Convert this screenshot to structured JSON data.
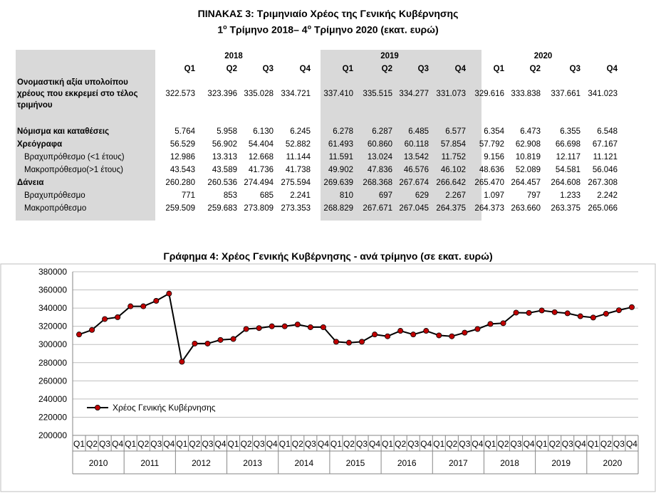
{
  "table": {
    "title_line1": "ΠΙΝΑΚΑΣ 3: Τριμηνιαίο Χρέος της Γενικής Κυβέρνησης",
    "title_line2_a": "1",
    "title_line2_sup1": "ο",
    "title_line2_b": " Τρίμηνο 2018– 4",
    "title_line2_sup2": "ο",
    "title_line2_c": " Τρίμηνο 2020 (εκατ. ευρώ)",
    "years": [
      "2018",
      "2019",
      "2020"
    ],
    "quarters": [
      "Q1",
      "Q2",
      "Q3",
      "Q4",
      "Q1",
      "Q2",
      "Q3",
      "Q4",
      "Q1",
      "Q2",
      "Q3",
      "Q4"
    ],
    "rows": [
      {
        "label": "Ονομαστική αξία υπολοίπου χρέους που εκκρεμεί στο τέλος τριμήνου",
        "values": [
          "322.573",
          "323.396",
          "335.028",
          "334.721",
          "337.410",
          "335.515",
          "334.277",
          "331.073",
          "329.616",
          "333.838",
          "337.661",
          "341.023"
        ]
      },
      {
        "label": "Νόμισμα και καταθέσεις",
        "values": [
          "5.764",
          "5.958",
          "6.130",
          "6.245",
          "6.278",
          "6.287",
          "6.485",
          "6.577",
          "6.354",
          "6.473",
          "6.355",
          "6.548"
        ]
      },
      {
        "label": "Χρεόγραφα",
        "values": [
          "56.529",
          "56.902",
          "54.404",
          "52.882",
          "61.493",
          "60.860",
          "60.118",
          "57.854",
          "57.792",
          "62.908",
          "66.698",
          "67.167"
        ]
      },
      {
        "label": "Βραχυπρόθεσμο (<1 έτους)",
        "values": [
          "12.986",
          "13.313",
          "12.668",
          "11.144",
          "11.591",
          "13.024",
          "13.542",
          "11.752",
          "9.156",
          "10.819",
          "12.117",
          "11.121"
        ]
      },
      {
        "label": "Μακροπρόθεσμο(>1 έτους)",
        "values": [
          "43.543",
          "43.589",
          "41.736",
          "41.738",
          "49.902",
          "47.836",
          "46.576",
          "46.102",
          "48.636",
          "52.089",
          "54.581",
          "56.046"
        ]
      },
      {
        "label": "Δάνεια",
        "values": [
          "260.280",
          "260.536",
          "274.494",
          "275.594",
          "269.639",
          "268.368",
          "267.674",
          "266.642",
          "265.470",
          "264.457",
          "264.608",
          "267.308"
        ]
      },
      {
        "label": "Βραχυπρόθεσμο",
        "values": [
          "771",
          "853",
          "685",
          "2.241",
          "810",
          "697",
          "629",
          "2.267",
          "1.097",
          "797",
          "1.233",
          "2.242"
        ]
      },
      {
        "label": "Μακροπρόθεσμο",
        "values": [
          "259.509",
          "259.683",
          "273.809",
          "273.353",
          "268.829",
          "267.671",
          "267.045",
          "264.375",
          "264.373",
          "263.660",
          "263.375",
          "265.066"
        ]
      }
    ]
  },
  "chart_data": {
    "type": "line",
    "title": "Γράφημα 4: Χρέος Γενικής Κυβέρνησης - ανά τρίμηνο (σε εκατ. ευρώ)",
    "years": [
      "2010",
      "2011",
      "2012",
      "2013",
      "2014",
      "2015",
      "2016",
      "2017",
      "2018",
      "2019",
      "2020"
    ],
    "quarter_labels": [
      "Q1",
      "Q2",
      "Q3",
      "Q4"
    ],
    "ylim": [
      200000,
      380000
    ],
    "yticks": [
      "200000",
      "220000",
      "240000",
      "260000",
      "280000",
      "300000",
      "320000",
      "340000",
      "360000",
      "380000"
    ],
    "legend_position": "left-middle",
    "grid": true,
    "series": [
      {
        "name": "Χρέος Γενικής Κυβέρνησης",
        "color": "#000000",
        "marker_color": "#c00000",
        "values": [
          311000,
          316000,
          328000,
          330000,
          342000,
          342000,
          348000,
          356000,
          281000,
          301000,
          301000,
          305000,
          306000,
          317000,
          318000,
          320000,
          320000,
          322000,
          319000,
          319000,
          303000,
          302000,
          303000,
          311000,
          309000,
          315000,
          311000,
          315000,
          310000,
          309000,
          313000,
          317000,
          322573,
          323396,
          335028,
          334721,
          337410,
          335515,
          334277,
          331073,
          329616,
          333838,
          337661,
          341023
        ]
      }
    ]
  }
}
